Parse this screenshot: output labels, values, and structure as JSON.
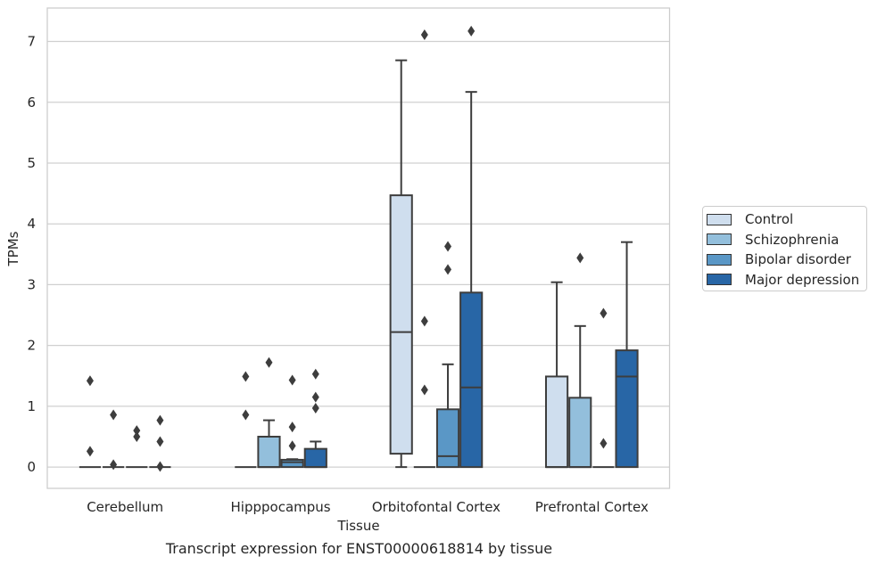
{
  "caption": "Transcript expression for ENST00000618814 by tissue",
  "chart_data": {
    "type": "box",
    "xlabel": "Tissue",
    "ylabel": "TPMs",
    "ylim": [
      -0.35,
      7.55
    ],
    "yticks": [
      0,
      1,
      2,
      3,
      4,
      5,
      6,
      7
    ],
    "grid": "horizontal",
    "legend_position": "right",
    "categories": [
      "Cerebellum",
      "Hipppocampus",
      "Orbitofontal Cortex",
      "Prefrontal Cortex"
    ],
    "series": [
      {
        "name": "Control",
        "color": "#cfdeee",
        "boxes": [
          {
            "q1": 0,
            "median": 0,
            "q3": 0,
            "whisker_low": 0,
            "whisker_high": 0,
            "outliers": [
              1.42,
              0.26
            ]
          },
          {
            "q1": 0,
            "median": 0,
            "q3": 0,
            "whisker_low": 0,
            "whisker_high": 0,
            "outliers": [
              1.49,
              0.86
            ]
          },
          {
            "q1": 0.22,
            "median": 2.22,
            "q3": 4.47,
            "whisker_low": 0,
            "whisker_high": 6.69,
            "outliers": []
          },
          {
            "q1": 0,
            "median": 0,
            "q3": 1.49,
            "whisker_low": 0,
            "whisker_high": 3.04,
            "outliers": []
          }
        ]
      },
      {
        "name": "Schizophrenia",
        "color": "#93bfdc",
        "boxes": [
          {
            "q1": 0,
            "median": 0,
            "q3": 0,
            "whisker_low": 0,
            "whisker_high": 0,
            "outliers": [
              0.86,
              0.04
            ]
          },
          {
            "q1": 0,
            "median": 0,
            "q3": 0.5,
            "whisker_low": 0,
            "whisker_high": 0.77,
            "outliers": [
              1.72
            ]
          },
          {
            "q1": 0,
            "median": 0,
            "q3": 0,
            "whisker_low": 0,
            "whisker_high": 0,
            "outliers": [
              7.11,
              2.4,
              1.27
            ]
          },
          {
            "q1": 0,
            "median": 0,
            "q3": 1.14,
            "whisker_low": 0,
            "whisker_high": 2.32,
            "outliers": [
              3.44
            ]
          }
        ]
      },
      {
        "name": "Bipolar disorder",
        "color": "#5a97c6",
        "boxes": [
          {
            "q1": 0,
            "median": 0,
            "q3": 0,
            "whisker_low": 0,
            "whisker_high": 0,
            "outliers": [
              0.6,
              0.5
            ]
          },
          {
            "q1": 0,
            "median": 0.08,
            "q3": 0.12,
            "whisker_low": 0,
            "whisker_high": 0.13,
            "outliers": [
              1.43,
              0.66,
              0.35
            ]
          },
          {
            "q1": 0,
            "median": 0.18,
            "q3": 0.95,
            "whisker_low": 0,
            "whisker_high": 1.69,
            "outliers": [
              3.63,
              3.25
            ]
          },
          {
            "q1": 0,
            "median": 0,
            "q3": 0,
            "whisker_low": 0,
            "whisker_high": 0,
            "outliers": [
              2.53,
              0.39
            ]
          }
        ]
      },
      {
        "name": "Major depression",
        "color": "#2866a6",
        "boxes": [
          {
            "q1": 0,
            "median": 0,
            "q3": 0,
            "whisker_low": 0,
            "whisker_high": 0,
            "outliers": [
              0.77,
              0.42,
              0.01
            ]
          },
          {
            "q1": 0,
            "median": 0,
            "q3": 0.3,
            "whisker_low": 0,
            "whisker_high": 0.42,
            "outliers": [
              1.53,
              1.15,
              0.97
            ]
          },
          {
            "q1": 0,
            "median": 1.31,
            "q3": 2.87,
            "whisker_low": 0,
            "whisker_high": 6.17,
            "outliers": [
              7.17
            ]
          },
          {
            "q1": 0,
            "median": 1.49,
            "q3": 1.92,
            "whisker_low": 0,
            "whisker_high": 3.7,
            "outliers": []
          }
        ]
      }
    ]
  }
}
